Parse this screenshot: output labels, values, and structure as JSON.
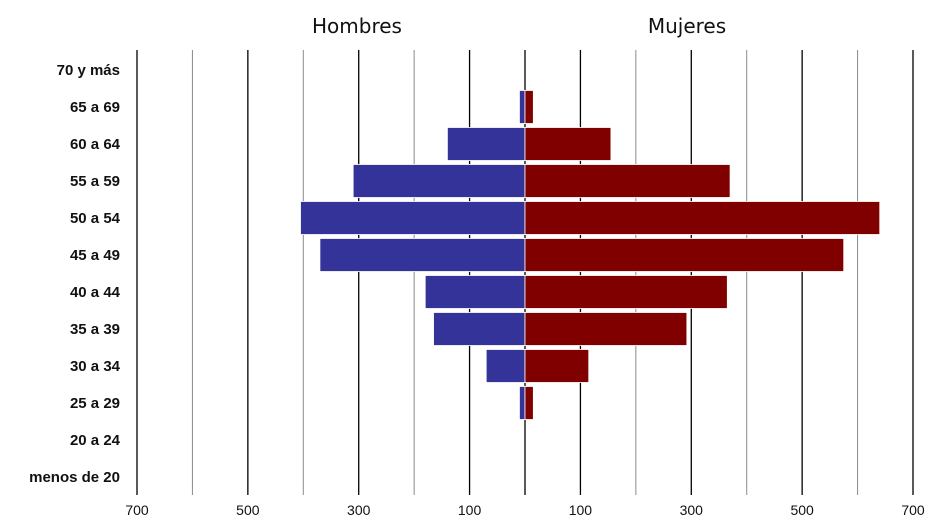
{
  "chart_data": {
    "type": "bar",
    "orientation": "horizontal",
    "layout": "population-pyramid",
    "side_titles": {
      "left": "Hombres",
      "right": "Mujeres"
    },
    "categories": [
      "70 y más",
      "65 a 69",
      "60 a 64",
      "55 a 59",
      "50 a 54",
      "45 a 49",
      "40 a 44",
      "35 a 39",
      "30 a 34",
      "25 a 29",
      "20 a 24",
      "menos de 20"
    ],
    "series": [
      {
        "name": "Hombres",
        "side": "left",
        "color": "#333399",
        "values": [
          0,
          10,
          140,
          310,
          405,
          370,
          180,
          165,
          70,
          10,
          0,
          0
        ]
      },
      {
        "name": "Mujeres",
        "side": "right",
        "color": "#800000",
        "values": [
          0,
          15,
          155,
          370,
          640,
          575,
          365,
          292,
          115,
          15,
          0,
          0
        ]
      }
    ],
    "tick_values": [
      -700,
      -600,
      -500,
      -400,
      -300,
      -200,
      -100,
      0,
      100,
      200,
      300,
      400,
      500,
      600,
      700
    ],
    "tick_labels": [
      {
        "value": -700,
        "label": "700"
      },
      {
        "value": -500,
        "label": "500"
      },
      {
        "value": -300,
        "label": "300"
      },
      {
        "value": -100,
        "label": "100"
      },
      {
        "value": 100,
        "label": "100"
      },
      {
        "value": 300,
        "label": "300"
      },
      {
        "value": 500,
        "label": "500"
      },
      {
        "value": 700,
        "label": "700"
      }
    ],
    "xlim": [
      -700,
      700
    ],
    "grid": true,
    "legend": "none"
  }
}
